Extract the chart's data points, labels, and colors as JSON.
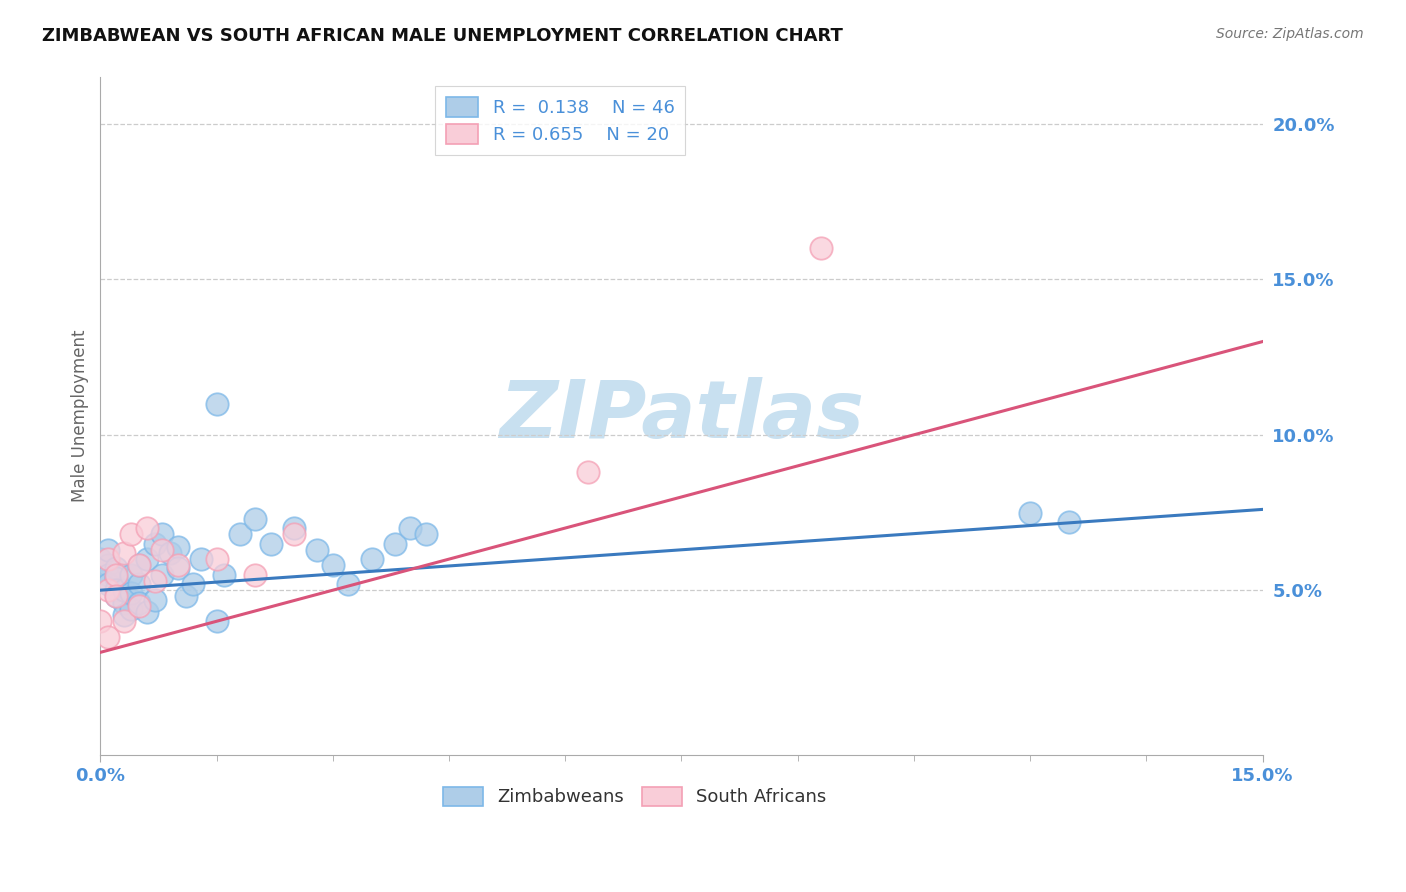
{
  "title": "ZIMBABWEAN VS SOUTH AFRICAN MALE UNEMPLOYMENT CORRELATION CHART",
  "source_text": "Source: ZipAtlas.com",
  "ylabel": "Male Unemployment",
  "xlim": [
    0.0,
    0.15
  ],
  "ylim": [
    -0.003,
    0.215
  ],
  "yticks": [
    0.05,
    0.1,
    0.15,
    0.2
  ],
  "ytick_labels": [
    "5.0%",
    "10.0%",
    "15.0%",
    "20.0%"
  ],
  "blue_color": "#7db8e8",
  "blue_fill": "#aecde8",
  "pink_color": "#f4a0b5",
  "pink_fill": "#f9cdd8",
  "blue_line_color": "#3a7abf",
  "pink_line_color": "#d9547a",
  "watermark_color": "#c8e0f0",
  "grid_color": "#cccccc",
  "tick_label_color": "#4a90d9",
  "axis_label_color": "#666666",
  "zim_x": [
    0.0,
    0.001,
    0.001,
    0.001,
    0.001,
    0.002,
    0.002,
    0.002,
    0.002,
    0.003,
    0.003,
    0.003,
    0.004,
    0.004,
    0.004,
    0.005,
    0.005,
    0.005,
    0.006,
    0.006,
    0.007,
    0.007,
    0.008,
    0.008,
    0.009,
    0.01,
    0.01,
    0.011,
    0.012,
    0.013,
    0.015,
    0.016,
    0.018,
    0.02,
    0.022,
    0.025,
    0.028,
    0.03,
    0.032,
    0.035,
    0.038,
    0.04,
    0.042,
    0.015,
    0.12,
    0.125
  ],
  "zim_y": [
    0.06,
    0.058,
    0.055,
    0.052,
    0.063,
    0.057,
    0.054,
    0.05,
    0.048,
    0.046,
    0.042,
    0.05,
    0.055,
    0.044,
    0.049,
    0.052,
    0.046,
    0.058,
    0.06,
    0.043,
    0.065,
    0.047,
    0.068,
    0.055,
    0.062,
    0.064,
    0.057,
    0.048,
    0.052,
    0.06,
    0.04,
    0.055,
    0.068,
    0.073,
    0.065,
    0.07,
    0.063,
    0.058,
    0.052,
    0.06,
    0.065,
    0.07,
    0.068,
    0.11,
    0.075,
    0.072
  ],
  "sa_x": [
    0.0,
    0.001,
    0.001,
    0.001,
    0.002,
    0.002,
    0.003,
    0.003,
    0.004,
    0.005,
    0.005,
    0.006,
    0.007,
    0.008,
    0.01,
    0.015,
    0.02,
    0.025,
    0.063,
    0.093
  ],
  "sa_y": [
    0.04,
    0.06,
    0.05,
    0.035,
    0.055,
    0.048,
    0.062,
    0.04,
    0.068,
    0.045,
    0.058,
    0.07,
    0.053,
    0.063,
    0.058,
    0.06,
    0.055,
    0.068,
    0.088,
    0.16
  ],
  "blue_line_x0": 0.0,
  "blue_line_y0": 0.05,
  "blue_line_x1": 0.15,
  "blue_line_y1": 0.076,
  "pink_line_x0": 0.0,
  "pink_line_y0": 0.03,
  "pink_line_x1": 0.15,
  "pink_line_y1": 0.13
}
